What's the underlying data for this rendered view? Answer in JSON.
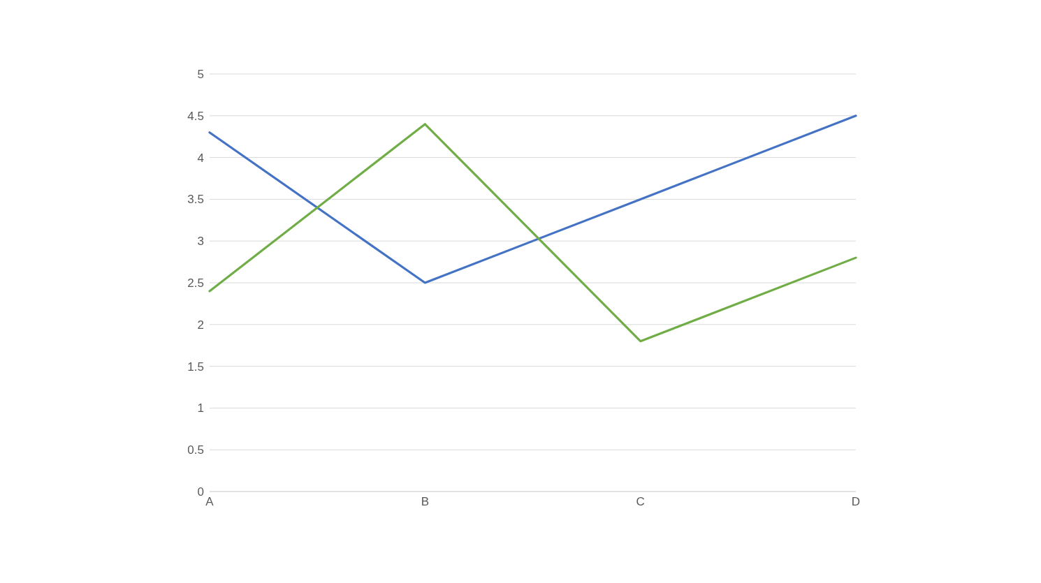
{
  "chart_data": {
    "type": "line",
    "categories": [
      "A",
      "B",
      "C",
      "D"
    ],
    "series": [
      {
        "color": "#4472c4",
        "values": [
          4.3,
          2.5,
          3.5,
          4.5
        ]
      },
      {
        "color": "#70ad47",
        "values": [
          2.4,
          4.4,
          1.8,
          2.8
        ]
      }
    ],
    "ylim": [
      0,
      5
    ],
    "yticks": [
      0,
      0.5,
      1,
      1.5,
      2,
      2.5,
      3,
      3.5,
      4,
      4.5,
      5
    ],
    "grid": "y",
    "marker": "none",
    "line_style": "solid",
    "legend": false
  }
}
